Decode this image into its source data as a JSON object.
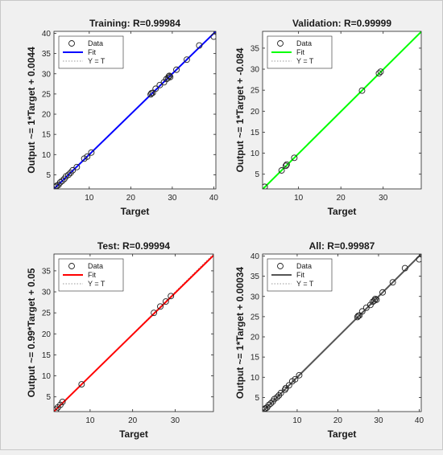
{
  "chart_data": [
    {
      "type": "scatter",
      "title": "Training: R=0.99984",
      "xlabel": "Target",
      "ylabel": "Output ~= 1*Target + 0.0044",
      "xlim": [
        1.5,
        40.5
      ],
      "ylim": [
        1.5,
        40.5
      ],
      "xticks": [
        10,
        20,
        30,
        40
      ],
      "yticks": [
        5,
        10,
        15,
        20,
        25,
        30,
        35,
        40
      ],
      "fit": {
        "slope": 1,
        "intercept": 0.0044,
        "color": "#0000ff"
      },
      "legend": {
        "placement": "top-left",
        "entries": [
          "Data",
          "Fit",
          "Y = T"
        ]
      },
      "points": [
        [
          2,
          2
        ],
        [
          2.2,
          2.3
        ],
        [
          2.6,
          2.5
        ],
        [
          3,
          3.1
        ],
        [
          3.5,
          3.5
        ],
        [
          4,
          4
        ],
        [
          4.4,
          4.6
        ],
        [
          5,
          5
        ],
        [
          5.5,
          5.5
        ],
        [
          6,
          6.1
        ],
        [
          7,
          6.9
        ],
        [
          8.8,
          9
        ],
        [
          9.5,
          9.5
        ],
        [
          10.5,
          10.5
        ],
        [
          24.8,
          24.9
        ],
        [
          25,
          25.2
        ],
        [
          25.3,
          25.3
        ],
        [
          26,
          26.3
        ],
        [
          27,
          27.2
        ],
        [
          28,
          27.9
        ],
        [
          28.6,
          28.7
        ],
        [
          29,
          29
        ],
        [
          29.2,
          29.4
        ],
        [
          29.5,
          29.2
        ],
        [
          29.3,
          29.5
        ],
        [
          31,
          31
        ],
        [
          33.5,
          33.5
        ],
        [
          36.5,
          37
        ],
        [
          40,
          39.2
        ]
      ]
    },
    {
      "type": "scatter",
      "title": "Validation: R=0.99999",
      "xlabel": "Target",
      "ylabel": "Output ~= 1*Target + -0.084",
      "xlim": [
        1.5,
        39
      ],
      "ylim": [
        1.5,
        39
      ],
      "xticks": [
        10,
        20,
        30
      ],
      "yticks": [
        5,
        10,
        15,
        20,
        25,
        30,
        35
      ],
      "fit": {
        "slope": 1,
        "intercept": -0.084,
        "color": "#00ff00"
      },
      "legend": {
        "placement": "top-left",
        "entries": [
          "Data",
          "Fit",
          "Y = T"
        ]
      },
      "points": [
        [
          2,
          2
        ],
        [
          6,
          5.9
        ],
        [
          7,
          7
        ],
        [
          7.2,
          7.3
        ],
        [
          9,
          8.9
        ],
        [
          25,
          24.9
        ],
        [
          29,
          29
        ],
        [
          29.4,
          29.4
        ]
      ]
    },
    {
      "type": "scatter",
      "title": "Test: R=0.99994",
      "xlabel": "Target",
      "ylabel": "Output ~= 0.99*Target + 0.05",
      "xlim": [
        1.5,
        39
      ],
      "ylim": [
        1.5,
        39
      ],
      "xticks": [
        10,
        20,
        30
      ],
      "yticks": [
        5,
        10,
        15,
        20,
        25,
        30,
        35
      ],
      "fit": {
        "slope": 0.99,
        "intercept": 0.05,
        "color": "#ff0000"
      },
      "legend": {
        "placement": "top-left",
        "entries": [
          "Data",
          "Fit",
          "Y = T"
        ]
      },
      "points": [
        [
          2,
          2
        ],
        [
          2.4,
          2.5
        ],
        [
          3,
          3.1
        ],
        [
          3.5,
          3.8
        ],
        [
          8,
          8
        ],
        [
          25,
          25
        ],
        [
          26.5,
          26.5
        ],
        [
          27.8,
          27.7
        ],
        [
          29,
          29
        ]
      ]
    },
    {
      "type": "scatter",
      "title": "All: R=0.99987",
      "xlabel": "Target",
      "ylabel": "Output ~= 1*Target + 0.00034",
      "xlim": [
        1.5,
        40.5
      ],
      "ylim": [
        1.5,
        40.5
      ],
      "xticks": [
        10,
        20,
        30,
        40
      ],
      "yticks": [
        5,
        10,
        15,
        20,
        25,
        30,
        35,
        40
      ],
      "fit": {
        "slope": 1,
        "intercept": 0.00034,
        "color": "#555555"
      },
      "legend": {
        "placement": "top-left",
        "entries": [
          "Data",
          "Fit",
          "Y = T"
        ]
      },
      "points": [
        [
          2,
          2
        ],
        [
          2.2,
          2.3
        ],
        [
          2.6,
          2.5
        ],
        [
          3,
          3.1
        ],
        [
          3.5,
          3.5
        ],
        [
          4,
          4
        ],
        [
          4.4,
          4.6
        ],
        [
          5,
          5
        ],
        [
          5.5,
          5.5
        ],
        [
          6,
          6.1
        ],
        [
          7,
          6.9
        ],
        [
          7.2,
          7.3
        ],
        [
          8,
          8
        ],
        [
          8.8,
          9
        ],
        [
          9.5,
          9.5
        ],
        [
          10.5,
          10.5
        ],
        [
          24.8,
          24.9
        ],
        [
          25,
          25.2
        ],
        [
          25.3,
          25.3
        ],
        [
          26,
          26.3
        ],
        [
          27,
          27.2
        ],
        [
          28,
          27.9
        ],
        [
          28.6,
          28.7
        ],
        [
          29,
          29
        ],
        [
          29.2,
          29.4
        ],
        [
          29.5,
          29.2
        ],
        [
          31,
          31
        ],
        [
          33.5,
          33.5
        ],
        [
          36.5,
          37
        ],
        [
          40,
          39.2
        ]
      ]
    }
  ]
}
